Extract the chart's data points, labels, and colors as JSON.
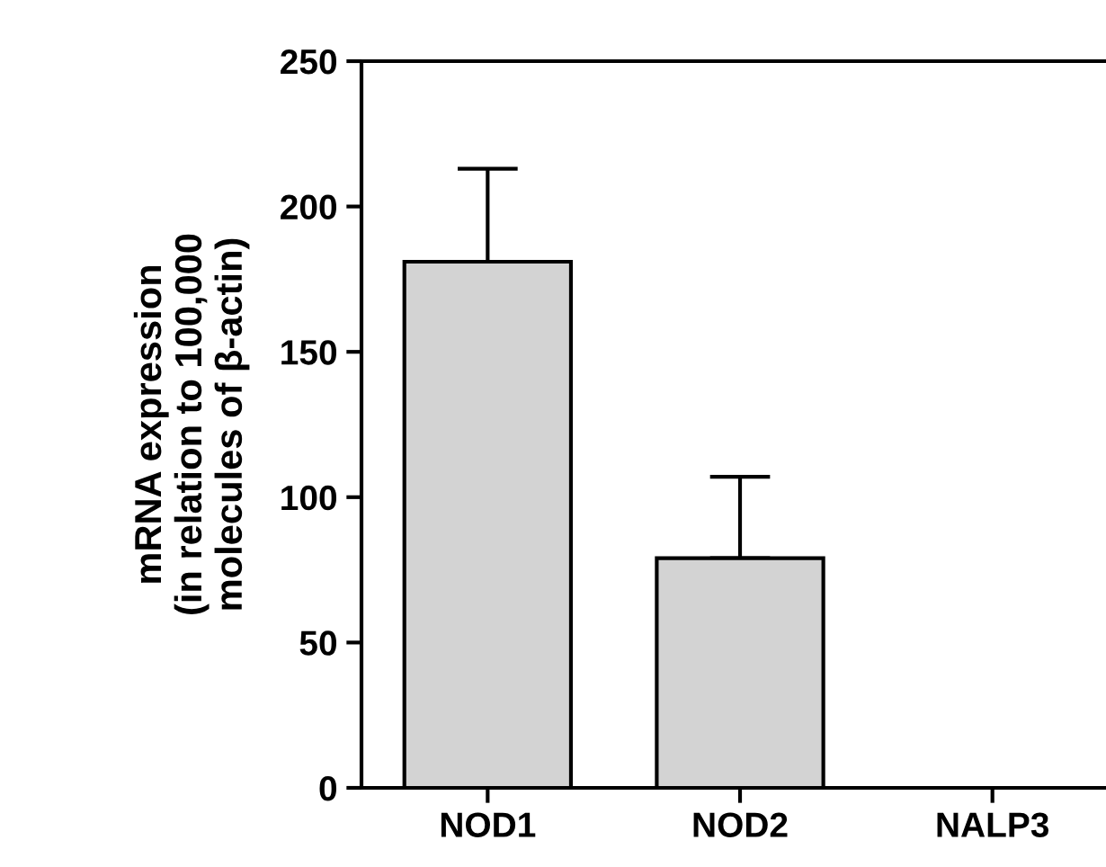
{
  "chart_data": {
    "type": "bar",
    "ylabel": "mRNA expression\n(in relation to 100,000\nmolecules of β-actin)",
    "categories": [
      "NOD1",
      "NOD2",
      "NALP3"
    ],
    "values": [
      181,
      79,
      null
    ],
    "errors": [
      [
        181,
        213
      ],
      [
        79,
        107
      ],
      null
    ],
    "color": "#d3d3d3",
    "ylim": [
      0,
      250
    ],
    "yticks": [
      0,
      50,
      100,
      150,
      200,
      250
    ],
    "grid": false
  }
}
